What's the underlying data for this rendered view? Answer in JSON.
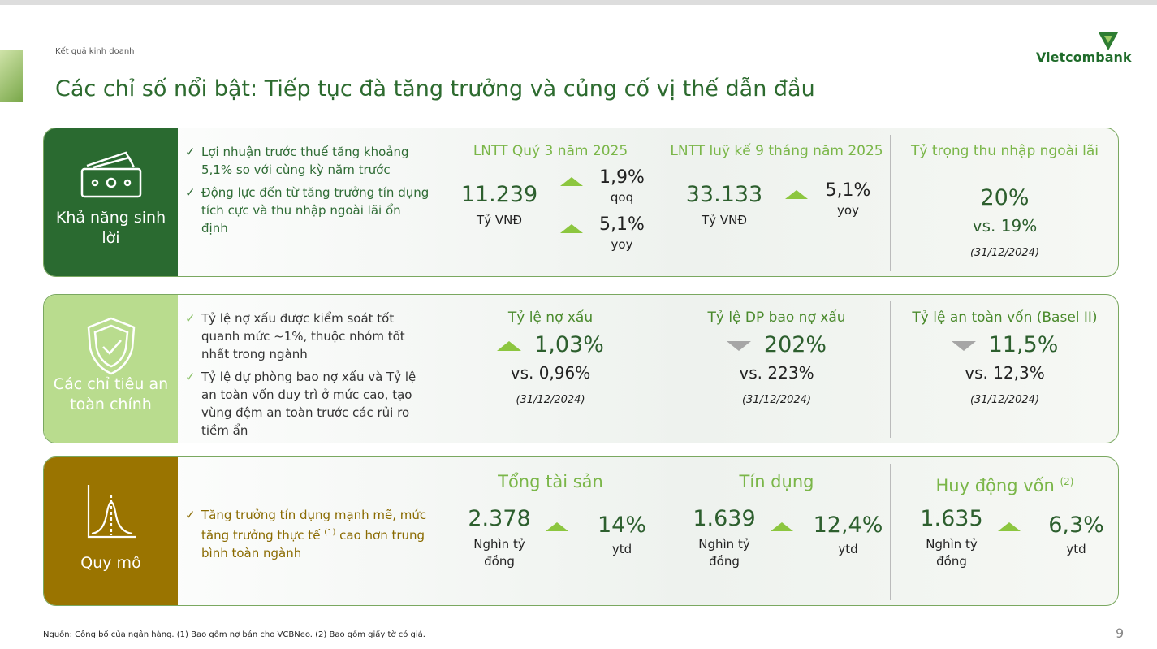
{
  "header": {
    "section": "Kết quả kinh doanh",
    "title": "Các chỉ số nổi bật: Tiếp tục đà tăng trưởng và củng cố vị thế dẫn đầu",
    "logo": "Vietcombank"
  },
  "rows": [
    {
      "label": "Khả năng sinh lời",
      "icon": "money",
      "bullets": [
        {
          "text": "Lợi nhuận trước thuế tăng khoảng 5,1% so với cùng kỳ năm trước"
        },
        {
          "text": "Động lực đến từ tăng trưởng tín dụng tích cực và thu nhập ngoài lãi ổn định"
        }
      ],
      "metrics": [
        {
          "title": "LNTT Quý 3 năm 2025",
          "value": "11.239",
          "unit": "Tỷ VNĐ",
          "changes": [
            {
              "direction": "up",
              "value": "1,9%",
              "basis": "qoq"
            },
            {
              "direction": "up",
              "value": "5,1%",
              "basis": "yoy"
            }
          ]
        },
        {
          "title": "LNTT luỹ kế 9 tháng năm 2025",
          "value": "33.133",
          "unit": "Tỷ VNĐ",
          "changes": [
            {
              "direction": "up",
              "value": "5,1%",
              "basis": "yoy"
            }
          ]
        },
        {
          "title": "Tỷ trọng thu nhập ngoài lãi",
          "value": "20%",
          "compare": "vs. 19%",
          "date": "(31/12/2024)"
        }
      ]
    },
    {
      "label": "Các chỉ tiêu an toàn chính",
      "icon": "shield",
      "bullets": [
        {
          "text": "Tỷ lệ nợ xấu được kiểm soát tốt quanh mức ~1%, thuộc nhóm tốt nhất trong ngành"
        },
        {
          "text": "Tỷ lệ dự phòng bao nợ xấu và Tỷ lệ an toàn vốn duy trì ở mức cao, tạo vùng đệm an toàn trước các rủi ro tiềm ẩn"
        }
      ],
      "metrics": [
        {
          "title": "Tỷ lệ nợ xấu",
          "direction": "up",
          "value": "1,03%",
          "compare": "vs. 0,96%",
          "date": "(31/12/2024)"
        },
        {
          "title": "Tỷ lệ DP bao nợ xấu",
          "direction": "down",
          "value": "202%",
          "compare": "vs. 223%",
          "date": "(31/12/2024)"
        },
        {
          "title": "Tỷ lệ an toàn vốn (Basel II)",
          "direction": "down",
          "value": "11,5%",
          "compare": "vs. 12,3%",
          "date": "(31/12/2024)"
        }
      ]
    },
    {
      "label": "Quy mô",
      "icon": "curve",
      "bullets": [
        {
          "text": "Tăng trưởng tín dụng mạnh mẽ, mức tăng trưởng thực tế",
          "note": "(1)",
          "text_after": "cao hơn trung bình toàn ngành"
        }
      ],
      "metrics": [
        {
          "title": "Tổng tài sản",
          "value": "2.378",
          "unit": "Nghìn tỷ đồng",
          "changes": [
            {
              "direction": "up",
              "value": "14%",
              "basis": "ytd"
            }
          ]
        },
        {
          "title": "Tín dụng",
          "value": "1.639",
          "unit": "Nghìn tỷ đồng",
          "changes": [
            {
              "direction": "up",
              "value": "12,4%",
              "basis": "ytd"
            }
          ]
        },
        {
          "title": "Huy động vốn",
          "note": "(2)",
          "value": "1.635",
          "unit": "Nghìn tỷ đồng",
          "changes": [
            {
              "direction": "up",
              "value": "6,3%",
              "basis": "ytd"
            }
          ]
        }
      ]
    }
  ],
  "footer": {
    "source": "Nguồn: Công bố của ngân hàng. (1) Bao gồm nợ bán cho VCBNeo. (2) Bao gồm giấy tờ có giá.",
    "page": "9"
  }
}
